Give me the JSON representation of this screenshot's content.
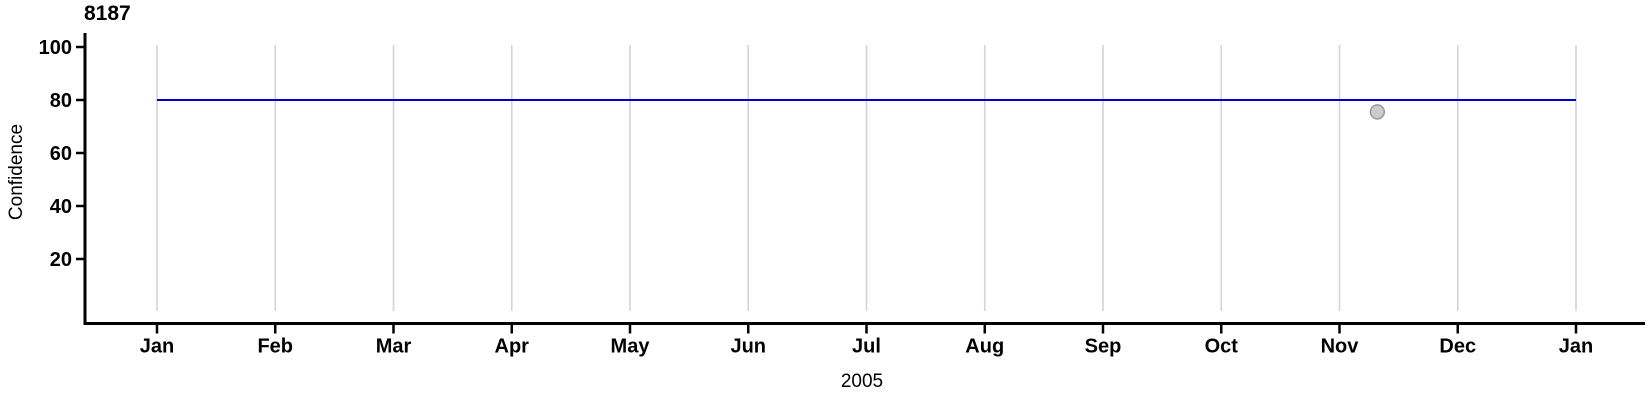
{
  "chart_data": {
    "type": "line",
    "title": "8187",
    "ylabel": "Confidence",
    "xlabel": "2005",
    "x_unit": "month",
    "x_tick_labels": [
      "Jan",
      "Feb",
      "Mar",
      "Apr",
      "May",
      "Jun",
      "Jul",
      "Aug",
      "Sep",
      "Oct",
      "Nov",
      "Dec",
      "Jan"
    ],
    "y_ticks": [
      20,
      40,
      60,
      80,
      100
    ],
    "y_axis_shown_range": [
      0,
      105
    ],
    "grid": "vertical-only",
    "legend": "none",
    "series": [
      {
        "name": "confidence-level-line",
        "type": "line",
        "color": "#0000CD",
        "points": [
          {
            "month_index": 0,
            "value": 80
          },
          {
            "month_index": 12,
            "value": 80
          }
        ]
      }
    ],
    "markers": [
      {
        "name": "observation-point",
        "type": "scatter",
        "month_index": 10.32,
        "value": 75.5,
        "fill": "#CBCBCB",
        "stroke": "#999999"
      }
    ],
    "colors": {
      "axis": "#000000",
      "grid": "#D4D4D4",
      "line": "#0000CD",
      "point_fill": "#CBCBCB",
      "point_stroke": "#999999",
      "text": "#000000",
      "background": "#FFFFFF"
    }
  }
}
